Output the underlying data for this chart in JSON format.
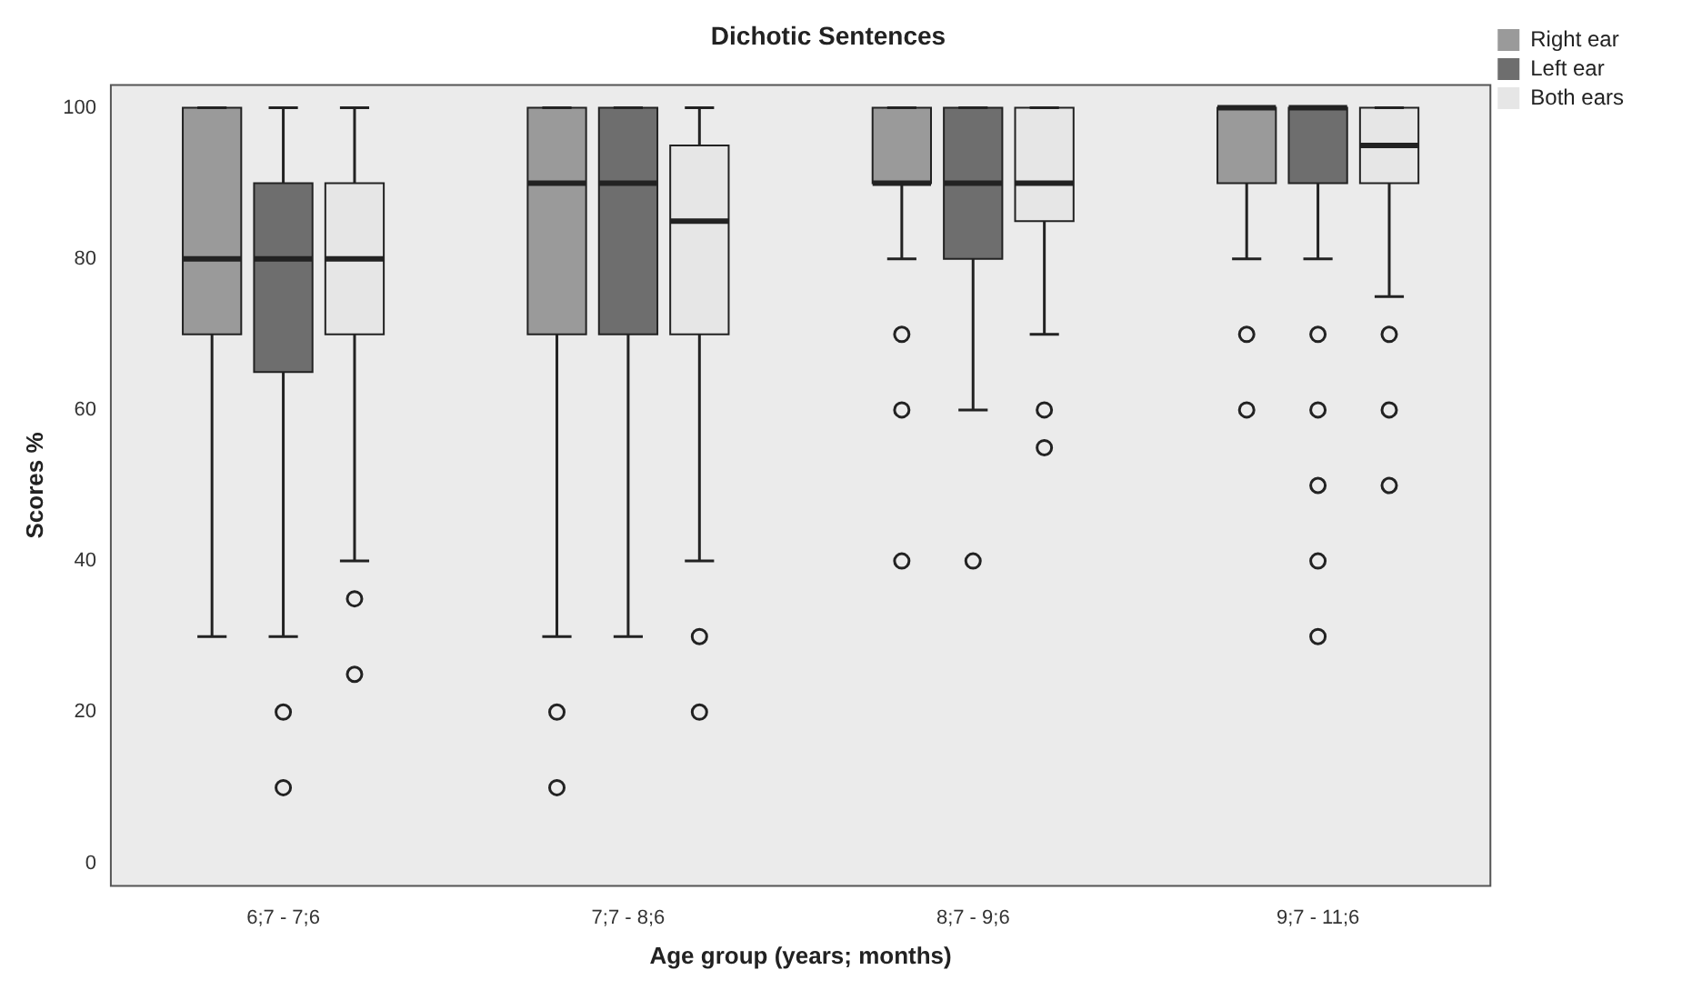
{
  "chart_data": {
    "type": "box",
    "title": "Dichotic Sentences",
    "xlabel": "Age group (years; months)",
    "ylabel": "Scores %",
    "categories": [
      "6;7 - 7;6",
      "7;7 - 8;6",
      "8;7 - 9;6",
      "9;7 - 11;6"
    ],
    "ylim": [
      -3,
      103
    ],
    "yticks": [
      0,
      20,
      40,
      60,
      80,
      100
    ],
    "grid": false,
    "legend": "top right",
    "series": [
      {
        "name": "Right ear",
        "color": "#9a9a9a",
        "boxes": [
          {
            "low": 30,
            "q1": 70,
            "median": 80,
            "q3": 100,
            "high": 100
          },
          {
            "low": 30,
            "q1": 70,
            "median": 90,
            "q3": 100,
            "high": 100,
            "outliers": [
              20,
              10
            ]
          },
          {
            "low": 80,
            "q1": 90,
            "median": 90,
            "q3": 100,
            "high": 100,
            "outliers": [
              70,
              60,
              40
            ]
          },
          {
            "low": 80,
            "q1": 90,
            "median": 100,
            "q3": 100,
            "high": 100,
            "outliers": [
              70,
              60
            ]
          }
        ]
      },
      {
        "name": "Left ear",
        "color": "#6e6e6e",
        "boxes": [
          {
            "low": 30,
            "q1": 65,
            "median": 80,
            "q3": 90,
            "high": 100,
            "outliers": [
              20,
              10
            ]
          },
          {
            "low": 30,
            "q1": 70,
            "median": 90,
            "q3": 100,
            "high": 100
          },
          {
            "low": 60,
            "q1": 80,
            "median": 90,
            "q3": 100,
            "high": 100,
            "outliers": [
              40
            ]
          },
          {
            "low": 80,
            "q1": 90,
            "median": 100,
            "q3": 100,
            "high": 100,
            "outliers": [
              70,
              60,
              50,
              40,
              30
            ]
          }
        ]
      },
      {
        "name": "Both ears",
        "color": "#e6e6e6",
        "boxes": [
          {
            "low": 40,
            "q1": 70,
            "median": 80,
            "q3": 90,
            "high": 100,
            "outliers": [
              35,
              25
            ]
          },
          {
            "low": 40,
            "q1": 70,
            "median": 85,
            "q3": 95,
            "high": 100,
            "outliers": [
              30,
              20
            ]
          },
          {
            "low": 70,
            "q1": 85,
            "median": 90,
            "q3": 100,
            "high": 100,
            "outliers": [
              60,
              55
            ]
          },
          {
            "low": 75,
            "q1": 90,
            "median": 95,
            "q3": 100,
            "high": 100,
            "outliers": [
              70,
              60,
              50
            ]
          }
        ]
      }
    ]
  }
}
